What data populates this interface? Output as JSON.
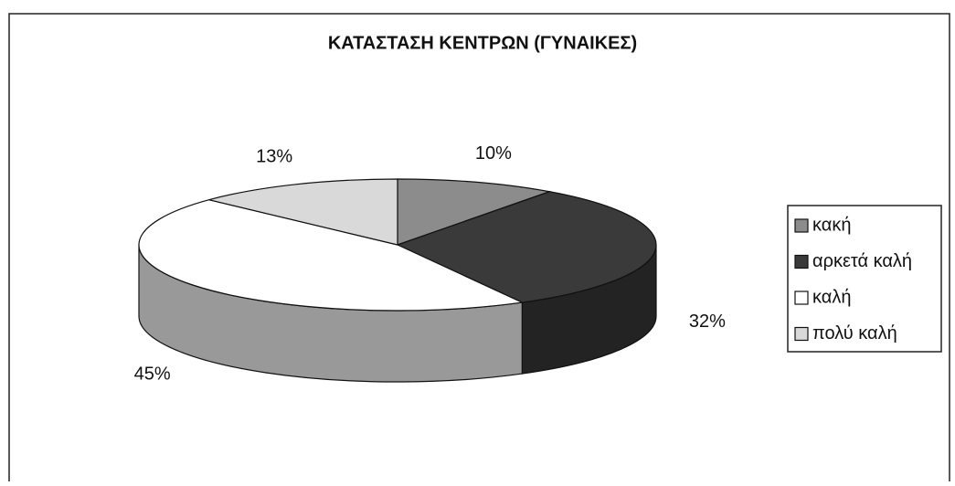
{
  "chart_data": {
    "type": "pie",
    "title": "ΚΑΤΑΣΤΑΣΗ ΚΕΝΤΡΩΝ (ΓΥΝΑΙΚΕΣ)",
    "categories": [
      "κακή",
      "αρκετά καλή",
      "καλή",
      "πολύ καλή"
    ],
    "values": [
      10,
      32,
      45,
      13
    ],
    "value_labels": [
      "10%",
      "32%",
      "45%",
      "13%"
    ],
    "colors": [
      "#8c8c8c",
      "#3a3a3a",
      "#ffffff",
      "#d9d9d9"
    ],
    "legend": "right"
  }
}
